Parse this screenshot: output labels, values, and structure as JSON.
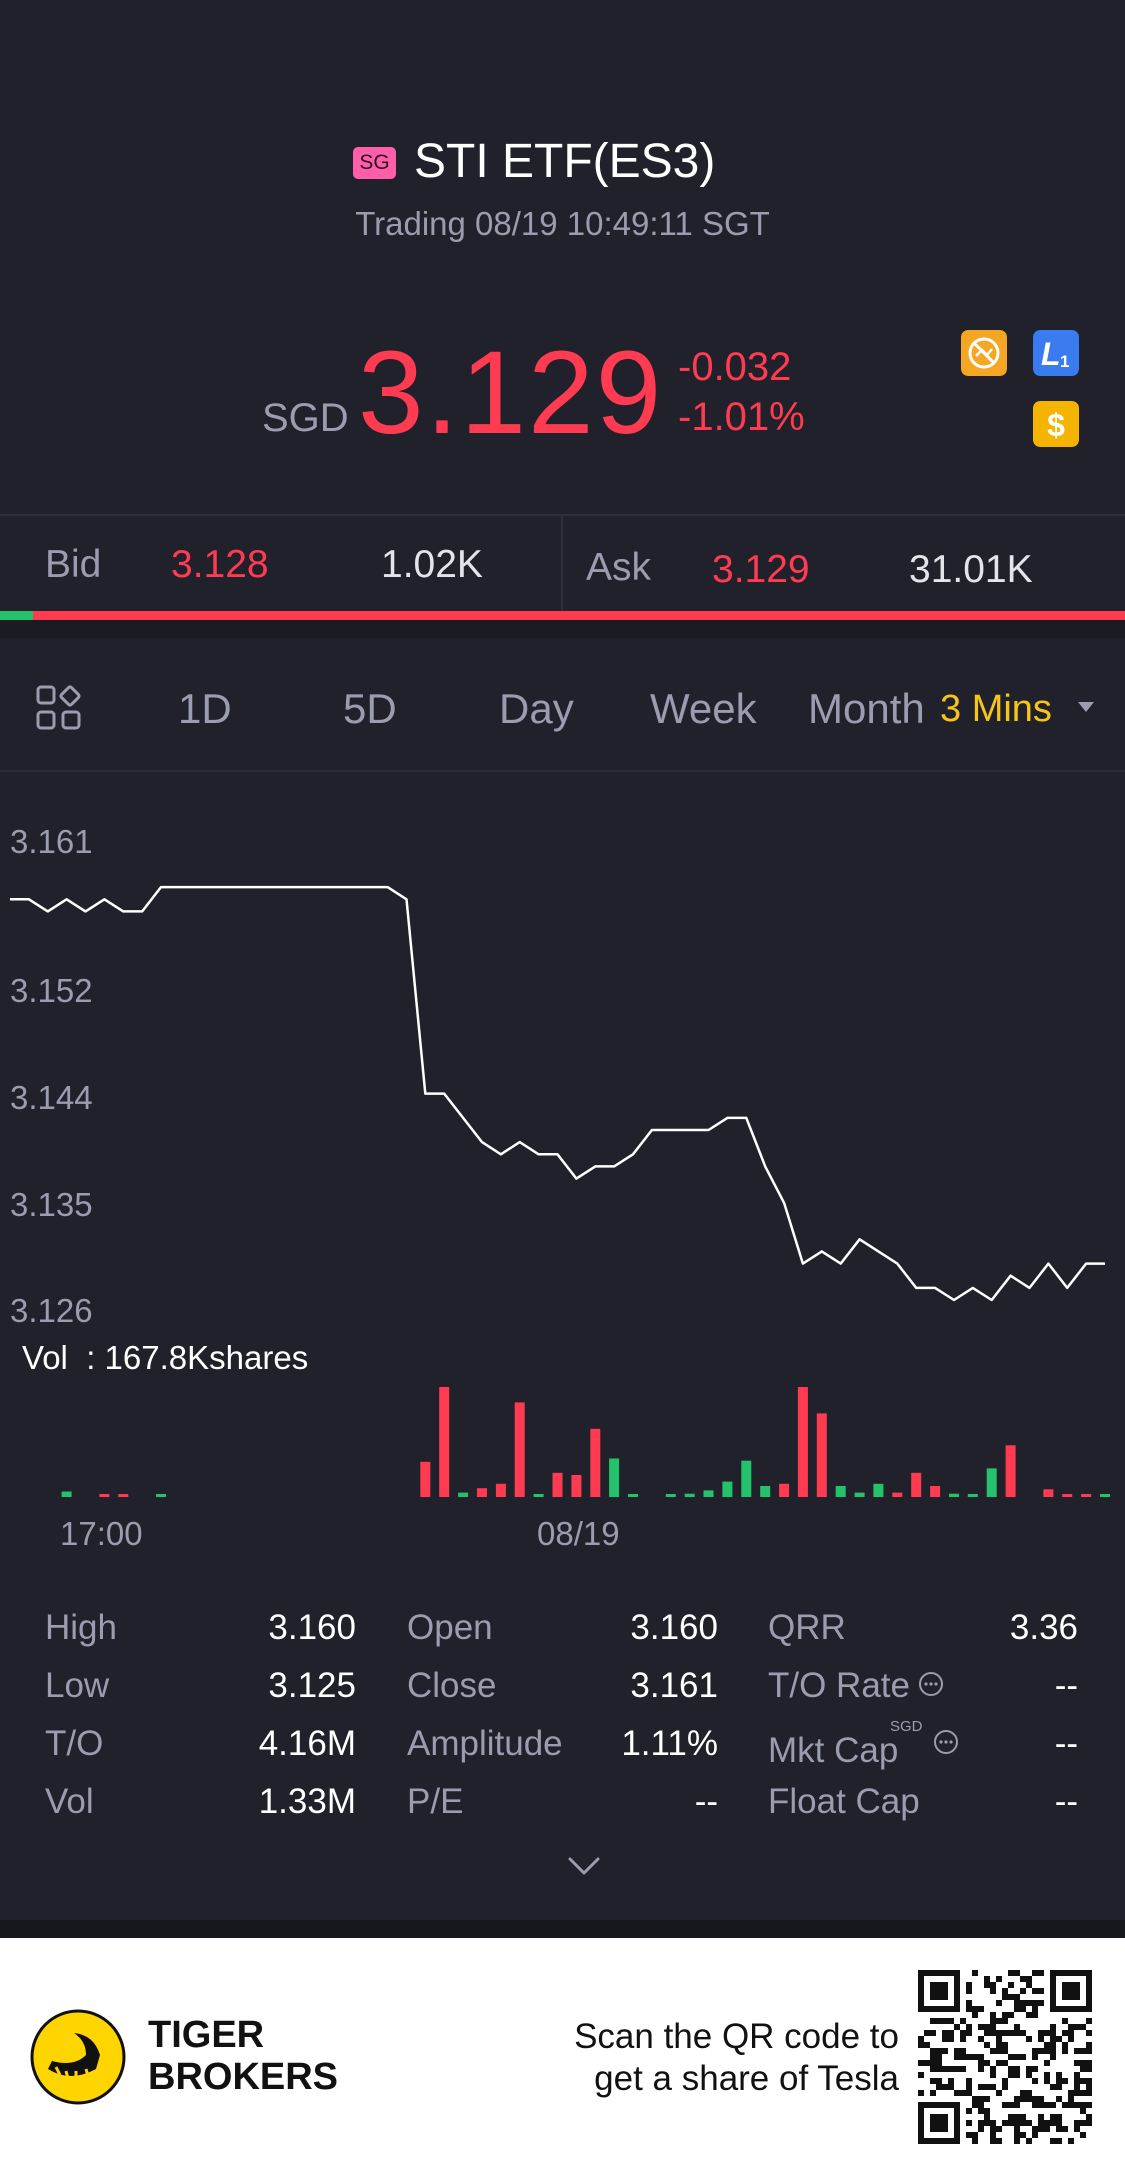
{
  "header": {
    "market_badge": "SG",
    "title": "STI ETF(ES3)",
    "status": "Trading 08/19 10:49:11 SGT"
  },
  "quote": {
    "currency": "SGD",
    "price": "3.129",
    "change": "-0.032",
    "change_pct": "-1.01%",
    "price_color": "#ff3b52",
    "badges": [
      {
        "name": "no-short-icon",
        "color": "#f5a623"
      },
      {
        "name": "level1-icon",
        "color": "#3a7cf0",
        "text": "L1"
      },
      {
        "name": "dollar-icon",
        "color": "#f5b400",
        "text": "$"
      }
    ]
  },
  "bid_ask": {
    "bid_label": "Bid",
    "bid_price": "3.128",
    "bid_size": "1.02K",
    "ask_label": "Ask",
    "ask_price": "3.129",
    "ask_size": "31.01K",
    "bid_ratio": 0.03
  },
  "tabs": {
    "items": [
      "1D",
      "5D",
      "Day",
      "Week",
      "Month"
    ],
    "selected": "3 Mins",
    "selected_color": "#f5c518"
  },
  "chart_data": {
    "type": "line",
    "y_ticks": [
      "3.161",
      "3.152",
      "3.144",
      "3.135",
      "3.126"
    ],
    "ylim": [
      3.126,
      3.161
    ],
    "x_ticks": [
      "17:00",
      "08/19"
    ],
    "line_color": "#ffffff",
    "values": [
      3.159,
      3.159,
      3.158,
      3.159,
      3.158,
      3.159,
      3.158,
      3.158,
      3.16,
      3.16,
      3.16,
      3.16,
      3.16,
      3.16,
      3.16,
      3.16,
      3.16,
      3.16,
      3.16,
      3.16,
      3.16,
      3.159,
      3.143,
      3.143,
      3.141,
      3.139,
      3.138,
      3.139,
      3.138,
      3.138,
      3.136,
      3.137,
      3.137,
      3.138,
      3.14,
      3.14,
      3.14,
      3.14,
      3.141,
      3.141,
      3.137,
      3.134,
      3.129,
      3.13,
      3.129,
      3.131,
      3.13,
      3.129,
      3.127,
      3.127,
      3.126,
      3.127,
      3.126,
      3.128,
      3.127,
      3.129,
      3.127,
      3.129,
      3.129
    ],
    "volume": {
      "label": "Vol",
      "total": ": 167.8Kshares",
      "up_color": "#23c26b",
      "down_color": "#ff3b52",
      "bars": [
        {
          "i": 3,
          "v": 0.05,
          "dir": "up"
        },
        {
          "i": 5,
          "v": 0.02,
          "dir": "down"
        },
        {
          "i": 6,
          "v": 0.02,
          "dir": "down"
        },
        {
          "i": 8,
          "v": 0.02,
          "dir": "up"
        },
        {
          "i": 22,
          "v": 0.32,
          "dir": "down"
        },
        {
          "i": 23,
          "v": 1.0,
          "dir": "down"
        },
        {
          "i": 24,
          "v": 0.04,
          "dir": "up"
        },
        {
          "i": 25,
          "v": 0.08,
          "dir": "down"
        },
        {
          "i": 26,
          "v": 0.12,
          "dir": "down"
        },
        {
          "i": 27,
          "v": 0.86,
          "dir": "down"
        },
        {
          "i": 28,
          "v": 0.02,
          "dir": "up"
        },
        {
          "i": 29,
          "v": 0.22,
          "dir": "down"
        },
        {
          "i": 30,
          "v": 0.2,
          "dir": "down"
        },
        {
          "i": 31,
          "v": 0.62,
          "dir": "down"
        },
        {
          "i": 32,
          "v": 0.35,
          "dir": "up"
        },
        {
          "i": 33,
          "v": 0.02,
          "dir": "up"
        },
        {
          "i": 35,
          "v": 0.02,
          "dir": "up"
        },
        {
          "i": 36,
          "v": 0.03,
          "dir": "up"
        },
        {
          "i": 37,
          "v": 0.06,
          "dir": "up"
        },
        {
          "i": 38,
          "v": 0.14,
          "dir": "up"
        },
        {
          "i": 39,
          "v": 0.33,
          "dir": "up"
        },
        {
          "i": 40,
          "v": 0.1,
          "dir": "up"
        },
        {
          "i": 41,
          "v": 0.12,
          "dir": "down"
        },
        {
          "i": 42,
          "v": 1.0,
          "dir": "down"
        },
        {
          "i": 43,
          "v": 0.76,
          "dir": "down"
        },
        {
          "i": 44,
          "v": 0.1,
          "dir": "up"
        },
        {
          "i": 45,
          "v": 0.04,
          "dir": "up"
        },
        {
          "i": 46,
          "v": 0.12,
          "dir": "up"
        },
        {
          "i": 47,
          "v": 0.04,
          "dir": "down"
        },
        {
          "i": 48,
          "v": 0.22,
          "dir": "down"
        },
        {
          "i": 49,
          "v": 0.1,
          "dir": "down"
        },
        {
          "i": 50,
          "v": 0.03,
          "dir": "up"
        },
        {
          "i": 51,
          "v": 0.02,
          "dir": "up"
        },
        {
          "i": 52,
          "v": 0.26,
          "dir": "up"
        },
        {
          "i": 53,
          "v": 0.47,
          "dir": "down"
        },
        {
          "i": 55,
          "v": 0.07,
          "dir": "down"
        },
        {
          "i": 56,
          "v": 0.02,
          "dir": "down"
        },
        {
          "i": 57,
          "v": 0.02,
          "dir": "down"
        },
        {
          "i": 58,
          "v": 0.02,
          "dir": "up"
        }
      ]
    }
  },
  "stats": [
    [
      {
        "label": "High",
        "value": "3.160"
      },
      {
        "label": "Open",
        "value": "3.160"
      },
      {
        "label": "QRR",
        "value": "3.36"
      }
    ],
    [
      {
        "label": "Low",
        "value": "3.125"
      },
      {
        "label": "Close",
        "value": "3.161"
      },
      {
        "label": "T/O Rate",
        "value": "--"
      }
    ],
    [
      {
        "label": "T/O",
        "value": "4.16M"
      },
      {
        "label": "Amplitude",
        "value": "1.11%"
      },
      {
        "label": "Mkt Cap",
        "value": "--"
      }
    ],
    [
      {
        "label": "Vol",
        "value": "1.33M"
      },
      {
        "label": "P/E",
        "value": "--"
      },
      {
        "label": "Float Cap",
        "value": "--"
      }
    ]
  ],
  "mkt_cap_currency": "SGD",
  "footer": {
    "brand_line1": "TIGER",
    "brand_line2": "BROKERS",
    "promo_line1": "Scan the QR code to",
    "promo_line2": "get a share of Tesla",
    "brand_color": "#ffd500"
  }
}
